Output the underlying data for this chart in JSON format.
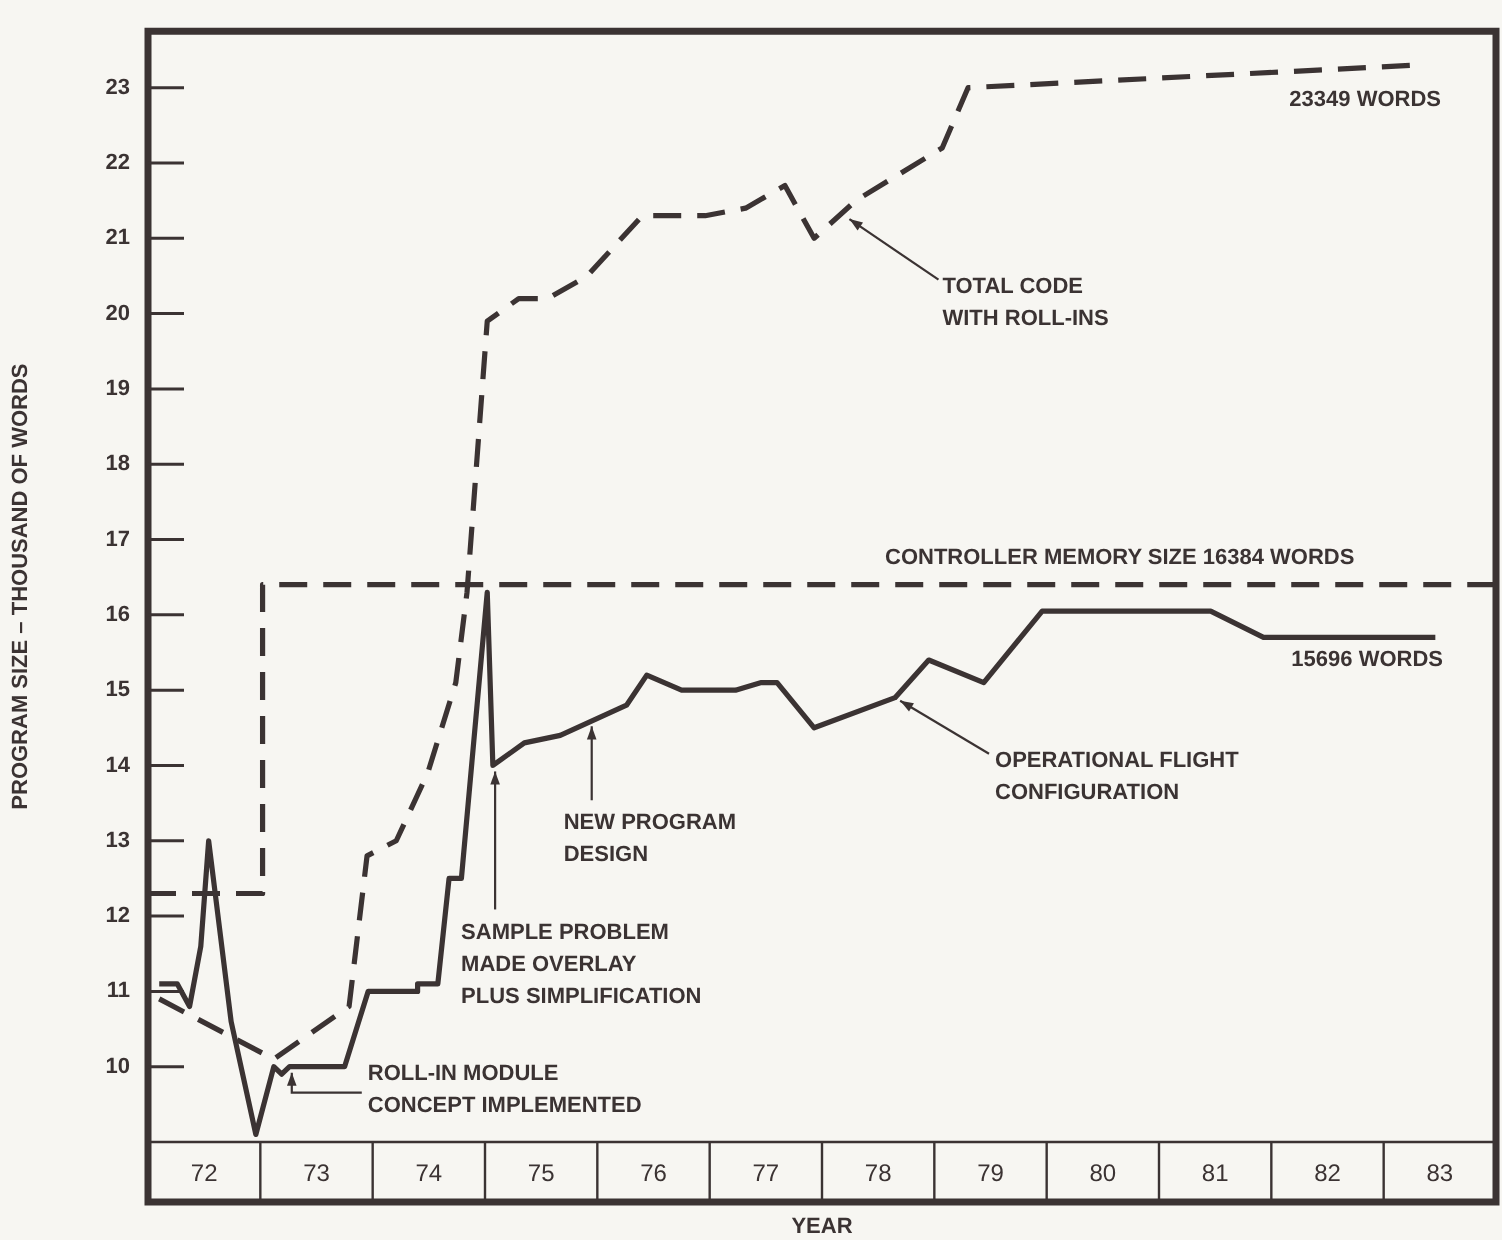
{
  "chart_data": {
    "type": "line",
    "xlabel": "YEAR",
    "ylabel": "PROGRAM SIZE – THOUSAND OF WORDS",
    "xlim": [
      71.5,
      83.5
    ],
    "xticks": [
      72,
      73,
      74,
      75,
      76,
      77,
      78,
      79,
      80,
      81,
      82,
      83
    ],
    "ylim": [
      9,
      23.75
    ],
    "yticks": [
      10,
      11,
      12,
      13,
      14,
      15,
      16,
      17,
      18,
      19,
      20,
      21,
      22,
      23
    ],
    "grid": false,
    "legend": false,
    "marker": "none",
    "series": [
      {
        "line_style": "dashed",
        "color": "#3b3333",
        "x": [
          71.6,
          72.62,
          73.29,
          73.45,
          73.71,
          73.99,
          74.24,
          74.34,
          74.52,
          74.8,
          75.06,
          75.41,
          75.9,
          76.46,
          76.82,
          77.17,
          77.43,
          77.8,
          78.57,
          78.8,
          82.8
        ],
        "values": [
          10.9,
          10.1,
          10.8,
          12.8,
          13.0,
          13.9,
          15.1,
          16.3,
          19.9,
          20.2,
          20.2,
          20.5,
          21.3,
          21.3,
          21.4,
          21.7,
          21.0,
          21.5,
          22.2,
          23.0,
          23.3
        ]
      },
      {
        "type": "step",
        "line_style": "dashed",
        "color": "#3b3333",
        "x": [
          71.5,
          72.52,
          83.5
        ],
        "values": [
          12.3,
          16.4,
          16.4
        ]
      },
      {
        "line_style": "solid",
        "color": "#3b3333",
        "x": [
          71.6,
          71.76,
          71.87,
          71.97,
          72.04,
          72.24,
          72.46,
          72.62,
          72.69,
          72.76,
          73.25,
          73.46,
          73.9,
          73.9,
          74.08,
          74.18,
          74.29,
          74.52,
          74.57,
          74.85,
          75.17,
          75.76,
          75.94,
          76.25,
          76.73,
          76.96,
          77.1,
          77.43,
          78.15,
          78.45,
          78.94,
          79.46,
          80.96,
          81.43,
          82.96
        ],
        "values": [
          11.1,
          11.1,
          10.8,
          11.6,
          13.0,
          10.6,
          9.1,
          10.0,
          9.9,
          10.0,
          10.0,
          11.0,
          11.0,
          11.1,
          11.1,
          12.5,
          12.5,
          16.3,
          14.0,
          14.3,
          14.4,
          14.8,
          15.2,
          15.0,
          15.0,
          15.1,
          15.1,
          14.5,
          14.9,
          15.4,
          15.1,
          16.05,
          16.05,
          15.7,
          15.7
        ]
      }
    ],
    "annotations": [
      {
        "text": "TOTAL CODE\nWITH ROLL-INS",
        "x": 77.7,
        "y": 21.3
      },
      {
        "text": "23349 WORDS",
        "x": 82.8,
        "y": 23.3
      },
      {
        "text": "CONTROLLER MEMORY SIZE 16384 WORDS",
        "x": 80.5,
        "y": 16.4
      },
      {
        "text": "15696 WORDS",
        "x": 82.96,
        "y": 15.7
      },
      {
        "text": "OPERATIONAL FLIGHT\nCONFIGURATION",
        "x": 78.15,
        "y": 14.9
      },
      {
        "text": "NEW PROGRAM\nDESIGN",
        "x": 75.45,
        "y": 14.6
      },
      {
        "text": "SAMPLE PROBLEM\nMADE OVERLAY\nPLUS SIMPLIFICATION",
        "x": 74.59,
        "y": 14.0
      },
      {
        "text": "ROLL-IN MODULE\nCONCEPT IMPLEMENTED",
        "x": 72.78,
        "y": 10.0
      }
    ]
  }
}
